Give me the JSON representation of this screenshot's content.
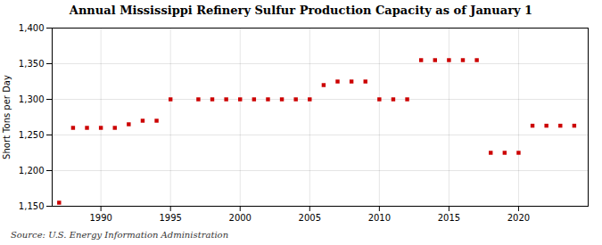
{
  "chart_data": {
    "type": "scatter",
    "title": "Annual Mississippi Refinery Sulfur Production Capacity as of January 1",
    "ylabel": "Short Tons per Day",
    "source": "Source: U.S. Energy Information Administration",
    "x": [
      1987,
      1988,
      1989,
      1990,
      1991,
      1992,
      1993,
      1994,
      1995,
      1997,
      1998,
      1999,
      2000,
      2001,
      2002,
      2003,
      2004,
      2005,
      2006,
      2007,
      2008,
      2009,
      2010,
      2011,
      2012,
      2013,
      2014,
      2015,
      2016,
      2017,
      2018,
      2019,
      2020,
      2021,
      2022,
      2023,
      2024
    ],
    "values": [
      1155,
      1260,
      1260,
      1260,
      1260,
      1265,
      1270,
      1270,
      1300,
      1300,
      1300,
      1300,
      1300,
      1300,
      1300,
      1300,
      1300,
      1300,
      1320,
      1325,
      1325,
      1325,
      1300,
      1300,
      1300,
      1355,
      1355,
      1355,
      1355,
      1355,
      1225,
      1225,
      1225,
      1263,
      1263,
      1263,
      1263
    ],
    "color": "#cc0000",
    "marker": "square",
    "xlim": [
      1986.5,
      2025
    ],
    "ylim": [
      1150,
      1400
    ],
    "xticks": [
      1990,
      1995,
      2000,
      2005,
      2010,
      2015,
      2020
    ],
    "yticks": [
      {
        "value": 1150,
        "label": "1,150"
      },
      {
        "value": 1200,
        "label": "1,200"
      },
      {
        "value": 1250,
        "label": "1,250"
      },
      {
        "value": 1300,
        "label": "1,300"
      },
      {
        "value": 1350,
        "label": "1,350"
      },
      {
        "value": 1400,
        "label": "1,400"
      }
    ],
    "grid": true
  }
}
